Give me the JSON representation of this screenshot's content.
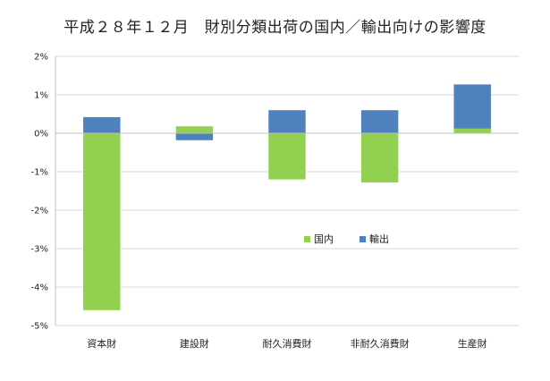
{
  "chart_data": {
    "type": "bar",
    "stacked": true,
    "title": "平成２８年１２月　財別分類出荷の国内／輸出向けの影響度",
    "categories": [
      "資本財",
      "建設財",
      "耐久消費財",
      "非耐久消費財",
      "生産財"
    ],
    "series": [
      {
        "name": "国内",
        "color": "#92d050",
        "values": [
          -4.6,
          0.18,
          -1.2,
          -1.28,
          0.12
        ]
      },
      {
        "name": "輸出",
        "color": "#4f81bd",
        "values": [
          0.42,
          -0.18,
          0.6,
          0.6,
          1.15
        ]
      }
    ],
    "ylim": [
      -5,
      2
    ],
    "yticks": [
      2,
      1,
      0,
      -1,
      -2,
      -3,
      -4,
      -5
    ],
    "ytick_labels": [
      "2%",
      "1%",
      "0%",
      "-1%",
      "-2%",
      "-3%",
      "-4%",
      "-5%"
    ],
    "grid": "horizontal",
    "legend": "inside-center"
  }
}
